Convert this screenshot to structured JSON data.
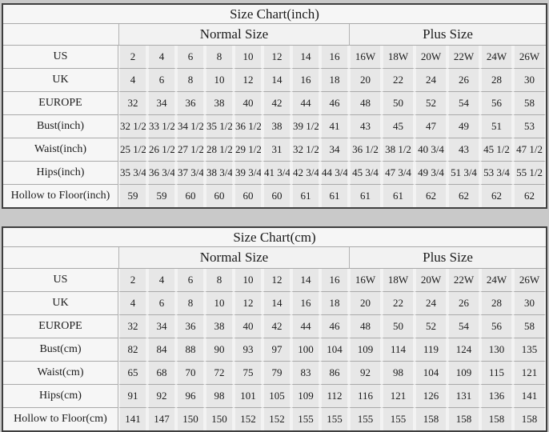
{
  "page": {
    "background_color": "#c9c9c9",
    "table_border_color": "#3f3f3f",
    "grid_line_color": "#a9a9a9",
    "data_cell_color": "#e7e7e7",
    "label_cell_color": "#f6f6f6"
  },
  "chart_data": {
    "type": "table"
  },
  "tables": [
    {
      "title": "Size Chart(inch)",
      "normal_header": "Normal Size",
      "plus_header": "Plus Size",
      "rows": [
        {
          "label": "US",
          "normal": [
            "2",
            "4",
            "6",
            "8",
            "10",
            "12",
            "14",
            "16"
          ],
          "plus": [
            "16W",
            "18W",
            "20W",
            "22W",
            "24W",
            "26W"
          ]
        },
        {
          "label": "UK",
          "normal": [
            "4",
            "6",
            "8",
            "10",
            "12",
            "14",
            "16",
            "18"
          ],
          "plus": [
            "20",
            "22",
            "24",
            "26",
            "28",
            "30"
          ]
        },
        {
          "label": "EUROPE",
          "normal": [
            "32",
            "34",
            "36",
            "38",
            "40",
            "42",
            "44",
            "46"
          ],
          "plus": [
            "48",
            "50",
            "52",
            "54",
            "56",
            "58"
          ]
        },
        {
          "label": "Bust(inch)",
          "normal": [
            "32 1/2",
            "33 1/2",
            "34 1/2",
            "35 1/2",
            "36 1/2",
            "38",
            "39 1/2",
            "41"
          ],
          "plus": [
            "43",
            "45",
            "47",
            "49",
            "51",
            "53"
          ]
        },
        {
          "label": "Waist(inch)",
          "normal": [
            "25 1/2",
            "26 1/2",
            "27 1/2",
            "28 1/2",
            "29 1/2",
            "31",
            "32 1/2",
            "34"
          ],
          "plus": [
            "36 1/2",
            "38 1/2",
            "40 3/4",
            "43",
            "45 1/2",
            "47 1/2"
          ]
        },
        {
          "label": "Hips(inch)",
          "normal": [
            "35 3/4",
            "36 3/4",
            "37 3/4",
            "38 3/4",
            "39 3/4",
            "41 3/4",
            "42 3/4",
            "44 3/4"
          ],
          "plus": [
            "45 3/4",
            "47 3/4",
            "49 3/4",
            "51 3/4",
            "53 3/4",
            "55 1/2"
          ]
        },
        {
          "label": "Hollow to Floor(inch)",
          "normal": [
            "59",
            "59",
            "60",
            "60",
            "60",
            "60",
            "61",
            "61"
          ],
          "plus": [
            "61",
            "61",
            "62",
            "62",
            "62",
            "62"
          ]
        }
      ]
    },
    {
      "title": "Size Chart(cm)",
      "normal_header": "Normal Size",
      "plus_header": "Plus Size",
      "rows": [
        {
          "label": "US",
          "normal": [
            "2",
            "4",
            "6",
            "8",
            "10",
            "12",
            "14",
            "16"
          ],
          "plus": [
            "16W",
            "18W",
            "20W",
            "22W",
            "24W",
            "26W"
          ]
        },
        {
          "label": "UK",
          "normal": [
            "4",
            "6",
            "8",
            "10",
            "12",
            "14",
            "16",
            "18"
          ],
          "plus": [
            "20",
            "22",
            "24",
            "26",
            "28",
            "30"
          ]
        },
        {
          "label": "EUROPE",
          "normal": [
            "32",
            "34",
            "36",
            "38",
            "40",
            "42",
            "44",
            "46"
          ],
          "plus": [
            "48",
            "50",
            "52",
            "54",
            "56",
            "58"
          ]
        },
        {
          "label": "Bust(cm)",
          "normal": [
            "82",
            "84",
            "88",
            "90",
            "93",
            "97",
            "100",
            "104"
          ],
          "plus": [
            "109",
            "114",
            "119",
            "124",
            "130",
            "135"
          ]
        },
        {
          "label": "Waist(cm)",
          "normal": [
            "65",
            "68",
            "70",
            "72",
            "75",
            "79",
            "83",
            "86"
          ],
          "plus": [
            "92",
            "98",
            "104",
            "109",
            "115",
            "121"
          ]
        },
        {
          "label": "Hips(cm)",
          "normal": [
            "91",
            "92",
            "96",
            "98",
            "101",
            "105",
            "109",
            "112"
          ],
          "plus": [
            "116",
            "121",
            "126",
            "131",
            "136",
            "141"
          ]
        },
        {
          "label": "Hollow to Floor(cm)",
          "normal": [
            "141",
            "147",
            "150",
            "150",
            "152",
            "152",
            "155",
            "155"
          ],
          "plus": [
            "155",
            "155",
            "158",
            "158",
            "158",
            "158"
          ]
        }
      ]
    }
  ]
}
